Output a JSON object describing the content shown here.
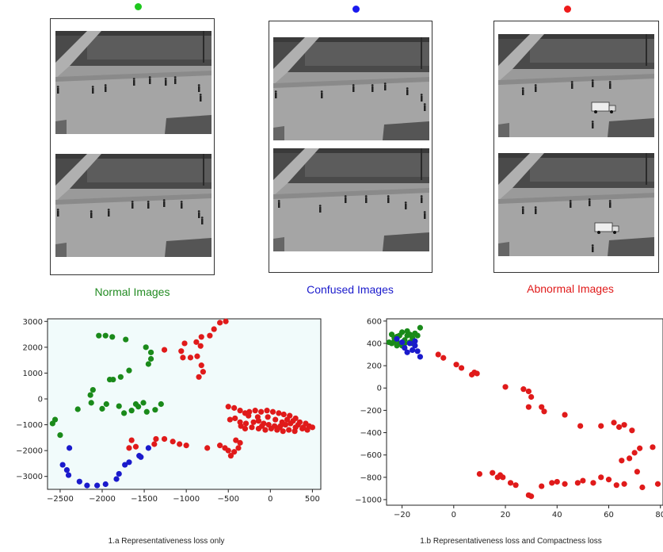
{
  "groups": [
    {
      "label": "Normal Images",
      "color": "#228b22",
      "dot_color": "#1ec81e"
    },
    {
      "label": "Confused Images",
      "color": "#1a1acc",
      "dot_color": "#1a1aee"
    },
    {
      "label": "Abnormal Images",
      "color": "#e01a1a",
      "dot_color": "#ee1a1a"
    }
  ],
  "captions": {
    "a": "1.a Representativeness loss only",
    "b": "1.b Representativeness loss and Compactness loss"
  },
  "chart_data": [
    {
      "type": "scatter",
      "caption": "1.a Representativeness loss only",
      "xlim": [
        -2650,
        600
      ],
      "ylim": [
        -3500,
        3100
      ],
      "xticks": [
        -2500,
        -2000,
        -1500,
        -1000,
        -500,
        0,
        500
      ],
      "yticks": [
        -3000,
        -2000,
        -1000,
        0,
        1000,
        2000,
        3000
      ],
      "background": "#f1fbfb",
      "series": [
        {
          "color": "#1a8a1a",
          "points": [
            [
              -2040,
              2450
            ],
            [
              -1960,
              2450
            ],
            [
              -1880,
              2400
            ],
            [
              -1720,
              2300
            ],
            [
              -1480,
              2000
            ],
            [
              -1420,
              1800
            ],
            [
              -1420,
              1550
            ],
            [
              -1450,
              1350
            ],
            [
              -1680,
              1100
            ],
            [
              -1780,
              850
            ],
            [
              -1870,
              750
            ],
            [
              -1910,
              750
            ],
            [
              -2110,
              350
            ],
            [
              -2140,
              150
            ],
            [
              -2130,
              -150
            ],
            [
              -1950,
              -200
            ],
            [
              -2000,
              -380
            ],
            [
              -2290,
              -400
            ],
            [
              -1800,
              -280
            ],
            [
              -1600,
              -200
            ],
            [
              -1510,
              -150
            ],
            [
              -1570,
              -300
            ],
            [
              -1650,
              -450
            ],
            [
              -1740,
              -550
            ],
            [
              -1300,
              -200
            ],
            [
              -1370,
              -420
            ],
            [
              -1470,
              -500
            ],
            [
              -2560,
              -800
            ],
            [
              -2590,
              -950
            ],
            [
              -2500,
              -1400
            ]
          ]
        },
        {
          "color": "#1a1acc",
          "points": [
            [
              -2390,
              -1900
            ],
            [
              -2470,
              -2550
            ],
            [
              -2420,
              -2750
            ],
            [
              -2400,
              -2950
            ],
            [
              -2270,
              -3200
            ],
            [
              -2180,
              -3350
            ],
            [
              -2060,
              -3350
            ],
            [
              -1960,
              -3300
            ],
            [
              -1830,
              -3100
            ],
            [
              -1800,
              -2900
            ],
            [
              -1730,
              -2550
            ],
            [
              -1680,
              -2450
            ],
            [
              -1560,
              -2200
            ],
            [
              -1540,
              -2250
            ],
            [
              -1450,
              -1900
            ]
          ]
        },
        {
          "color": "#e01a1a",
          "points": [
            [
              -530,
              3000
            ],
            [
              -600,
              2950
            ],
            [
              -670,
              2700
            ],
            [
              -720,
              2450
            ],
            [
              -820,
              2400
            ],
            [
              -830,
              2050
            ],
            [
              -880,
              2200
            ],
            [
              -1020,
              2150
            ],
            [
              -1060,
              1850
            ],
            [
              -1040,
              1600
            ],
            [
              -950,
              1600
            ],
            [
              -870,
              1650
            ],
            [
              -820,
              1300
            ],
            [
              -800,
              1050
            ],
            [
              -850,
              850
            ],
            [
              -1260,
              1900
            ],
            [
              -1380,
              -1750
            ],
            [
              -1600,
              -1850
            ],
            [
              -1650,
              -1600
            ],
            [
              -1680,
              -1900
            ],
            [
              -1360,
              -1550
            ],
            [
              -1260,
              -1550
            ],
            [
              -1160,
              -1650
            ],
            [
              -1080,
              -1750
            ],
            [
              -1000,
              -1800
            ],
            [
              -750,
              -1900
            ],
            [
              -600,
              -1800
            ],
            [
              -540,
              -1900
            ],
            [
              -500,
              -2000
            ],
            [
              -430,
              -2050
            ],
            [
              -470,
              -2200
            ],
            [
              -380,
              -1900
            ],
            [
              -410,
              -1600
            ],
            [
              -360,
              -1700
            ],
            [
              -500,
              -300
            ],
            [
              -430,
              -350
            ],
            [
              -360,
              -450
            ],
            [
              -300,
              -550
            ],
            [
              -250,
              -500
            ],
            [
              -180,
              -450
            ],
            [
              -110,
              -500
            ],
            [
              -40,
              -450
            ],
            [
              30,
              -500
            ],
            [
              100,
              -550
            ],
            [
              160,
              -600
            ],
            [
              230,
              -650
            ],
            [
              300,
              -750
            ],
            [
              350,
              -900
            ],
            [
              420,
              -950
            ],
            [
              500,
              -1100
            ],
            [
              -420,
              -750
            ],
            [
              -360,
              -900
            ],
            [
              -290,
              -950
            ],
            [
              -200,
              -900
            ],
            [
              -140,
              -850
            ],
            [
              -80,
              -950
            ],
            [
              -20,
              -1000
            ],
            [
              50,
              -1050
            ],
            [
              110,
              -1100
            ],
            [
              180,
              -1000
            ],
            [
              240,
              -950
            ],
            [
              300,
              -1100
            ],
            [
              390,
              -1100
            ],
            [
              440,
              -1200
            ],
            [
              -300,
              -1150
            ],
            [
              -220,
              -1100
            ],
            [
              -140,
              -1150
            ],
            [
              -60,
              -1200
            ],
            [
              10,
              -1150
            ],
            [
              80,
              -1200
            ],
            [
              150,
              -1250
            ],
            [
              220,
              -1200
            ],
            [
              290,
              -1250
            ],
            [
              -480,
              -800
            ],
            [
              -260,
              -650
            ],
            [
              -150,
              -700
            ],
            [
              -30,
              -700
            ],
            [
              60,
              -800
            ],
            [
              140,
              -900
            ],
            [
              200,
              -800
            ],
            [
              270,
              -850
            ],
            [
              330,
              -1000
            ],
            [
              380,
              -1150
            ],
            [
              460,
              -1050
            ],
            [
              -350,
              -1050
            ],
            [
              -100,
              -1050
            ],
            [
              120,
              -1050
            ]
          ]
        }
      ]
    },
    {
      "type": "scatter",
      "caption": "1.b Representativeness loss and Compactness loss",
      "xlim": [
        -26,
        81
      ],
      "ylim": [
        -1050,
        620
      ],
      "xticks": [
        -20,
        0,
        20,
        40,
        60,
        80
      ],
      "yticks": [
        600,
        400,
        200,
        0,
        -200,
        -400,
        -600,
        -800,
        -1000
      ],
      "background": "#ffffff",
      "series": [
        {
          "color": "#1a8a1a",
          "points": [
            [
              -24,
              480
            ],
            [
              -23,
              420
            ],
            [
              -22,
              460
            ],
            [
              -21,
              400
            ],
            [
              -20,
              500
            ],
            [
              -19,
              430
            ],
            [
              -18,
              470
            ],
            [
              -17,
              410
            ],
            [
              -16,
              450
            ],
            [
              -15,
              490
            ],
            [
              -13,
              540
            ],
            [
              -22,
              380
            ],
            [
              -24,
              400
            ],
            [
              -20,
              380
            ],
            [
              -18,
              510
            ],
            [
              -14,
              470
            ],
            [
              -23,
              450
            ],
            [
              -17,
              480
            ],
            [
              -21,
              470
            ],
            [
              -19,
              400
            ],
            [
              -25,
              410
            ],
            [
              -16,
              400
            ]
          ]
        },
        {
          "color": "#1a1acc",
          "points": [
            [
              -22,
              440
            ],
            [
              -19,
              360
            ],
            [
              -18,
              320
            ],
            [
              -17,
              400
            ],
            [
              -16,
              340
            ],
            [
              -15,
              380
            ],
            [
              -14,
              330
            ],
            [
              -13,
              280
            ],
            [
              -15,
              420
            ],
            [
              -20,
              410
            ]
          ]
        },
        {
          "color": "#e01a1a",
          "points": [
            [
              -6,
              300
            ],
            [
              -4,
              270
            ],
            [
              1,
              210
            ],
            [
              3,
              180
            ],
            [
              7,
              120
            ],
            [
              8,
              140
            ],
            [
              9,
              130
            ],
            [
              20,
              10
            ],
            [
              27,
              -10
            ],
            [
              29,
              -30
            ],
            [
              30,
              -80
            ],
            [
              29,
              -170
            ],
            [
              34,
              -170
            ],
            [
              35,
              -210
            ],
            [
              43,
              -240
            ],
            [
              49,
              -340
            ],
            [
              57,
              -340
            ],
            [
              62,
              -310
            ],
            [
              64,
              -350
            ],
            [
              66,
              -330
            ],
            [
              69,
              -380
            ],
            [
              70,
              -580
            ],
            [
              68,
              -630
            ],
            [
              72,
              -540
            ],
            [
              77,
              -530
            ],
            [
              65,
              -650
            ],
            [
              71,
              -750
            ],
            [
              73,
              -890
            ],
            [
              79,
              -860
            ],
            [
              66,
              -860
            ],
            [
              63,
              -870
            ],
            [
              60,
              -820
            ],
            [
              57,
              -800
            ],
            [
              54,
              -850
            ],
            [
              50,
              -830
            ],
            [
              48,
              -850
            ],
            [
              43,
              -860
            ],
            [
              40,
              -840
            ],
            [
              38,
              -850
            ],
            [
              34,
              -880
            ],
            [
              30,
              -970
            ],
            [
              29,
              -960
            ],
            [
              24,
              -870
            ],
            [
              22,
              -850
            ],
            [
              19,
              -800
            ],
            [
              18,
              -780
            ],
            [
              17,
              -800
            ],
            [
              15,
              -760
            ],
            [
              10,
              -770
            ]
          ]
        }
      ]
    }
  ]
}
